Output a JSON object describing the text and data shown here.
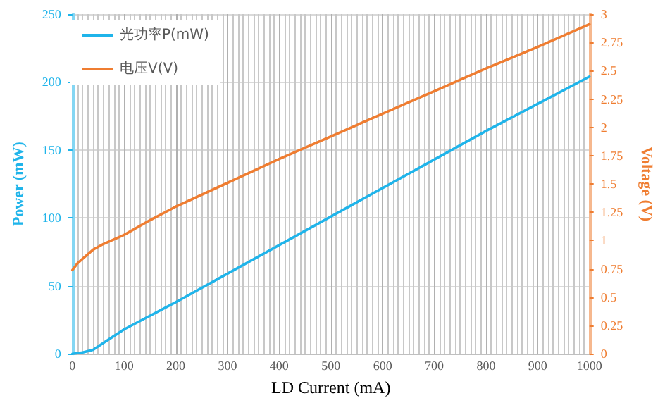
{
  "chart_data": {
    "type": "line",
    "xlabel": "LD Current (mA)",
    "ylabel": "Power (mW)",
    "y2label": "Voltage (V)",
    "xlim": [
      0,
      1000
    ],
    "xticks": [
      0,
      100,
      200,
      300,
      400,
      500,
      600,
      700,
      800,
      900,
      1000
    ],
    "ylim": [
      0,
      250
    ],
    "yticks": [
      0,
      50,
      100,
      150,
      200,
      250
    ],
    "y2lim": [
      0,
      3
    ],
    "y2ticks": [
      0,
      0.25,
      0.5,
      0.75,
      1,
      1.25,
      1.5,
      1.75,
      2,
      2.25,
      2.5,
      2.75,
      3
    ],
    "grid": true,
    "legend": "top left",
    "marker": "none",
    "line_style": "solid",
    "series": [
      {
        "name": "光功率P(mW)",
        "color": "#1fb4ea",
        "x": [
          0,
          20,
          40,
          60,
          80,
          100,
          200,
          300,
          400,
          500,
          600,
          700,
          800,
          900,
          1000
        ],
        "values": [
          0,
          1,
          3,
          8,
          13,
          18,
          38,
          59,
          80,
          101,
          122,
          143,
          164,
          184,
          204
        ]
      },
      {
        "name": "电压V(V)",
        "color": "#ef7d31",
        "axis": "y2",
        "x": [
          0,
          10,
          20,
          40,
          60,
          80,
          100,
          150,
          200,
          300,
          400,
          500,
          600,
          700,
          800,
          900,
          1000
        ],
        "values": [
          0.74,
          0.8,
          0.84,
          0.92,
          0.97,
          1.01,
          1.05,
          1.18,
          1.3,
          1.51,
          1.72,
          1.92,
          2.12,
          2.32,
          2.52,
          2.71,
          2.91
        ]
      }
    ]
  }
}
